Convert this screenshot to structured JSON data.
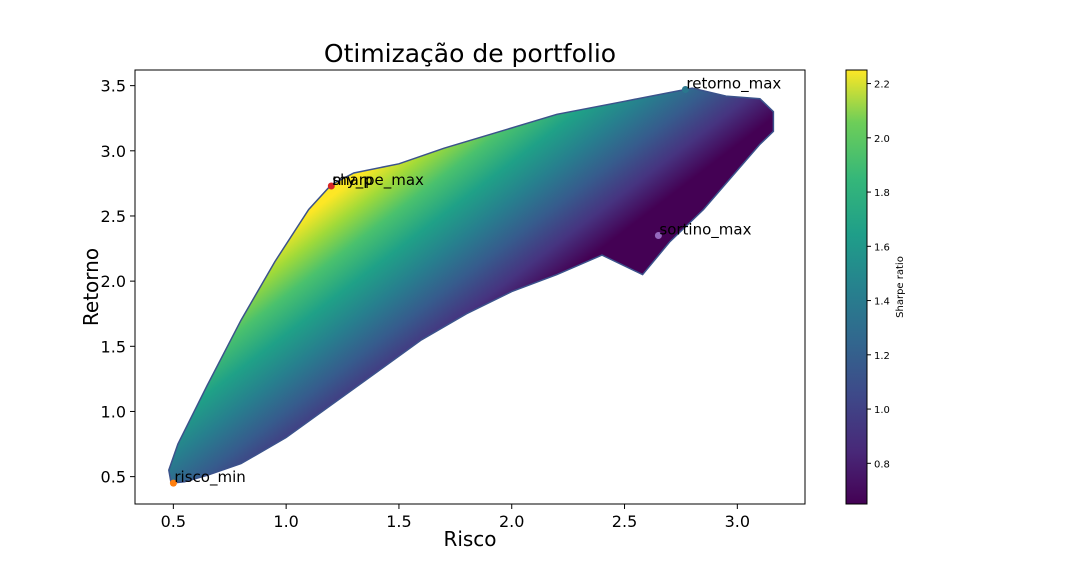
{
  "chart_data": {
    "type": "scatter",
    "title": "Otimização de portfolio",
    "xlabel": "Risco",
    "ylabel": "Retorno",
    "xlim": [
      0.33,
      3.3
    ],
    "ylim": [
      0.29,
      3.62
    ],
    "xticks": [
      0.5,
      1.0,
      1.5,
      2.0,
      2.5,
      3.0
    ],
    "yticks": [
      0.5,
      1.0,
      1.5,
      2.0,
      2.5,
      3.0,
      3.5
    ],
    "xtick_labels": [
      "0.5",
      "1.0",
      "1.5",
      "2.0",
      "2.5",
      "3.0"
    ],
    "ytick_labels": [
      "0.5",
      "1.0",
      "1.5",
      "2.0",
      "2.5",
      "3.0",
      "3.5"
    ],
    "grid": false,
    "colormap": "viridis",
    "colorbar": {
      "label": "Sharpe ratio",
      "range": [
        0.65,
        2.25
      ],
      "ticks": [
        0.8,
        1.0,
        1.2,
        1.4,
        1.6,
        1.8,
        2.0,
        2.2
      ],
      "tick_labels": [
        "0.8",
        "1.0",
        "1.2",
        "1.4",
        "1.6",
        "1.8",
        "2.0",
        "2.2"
      ]
    },
    "cloud_outline": [
      [
        0.49,
        0.45
      ],
      [
        0.55,
        0.46
      ],
      [
        0.65,
        0.51
      ],
      [
        0.8,
        0.6
      ],
      [
        1.0,
        0.8
      ],
      [
        1.2,
        1.05
      ],
      [
        1.4,
        1.3
      ],
      [
        1.6,
        1.55
      ],
      [
        1.8,
        1.75
      ],
      [
        2.0,
        1.92
      ],
      [
        2.2,
        2.05
      ],
      [
        2.4,
        2.2
      ],
      [
        2.58,
        2.05
      ],
      [
        2.7,
        2.3
      ],
      [
        2.85,
        2.55
      ],
      [
        3.0,
        2.85
      ],
      [
        3.1,
        3.05
      ],
      [
        3.16,
        3.15
      ],
      [
        3.16,
        3.3
      ],
      [
        3.1,
        3.4
      ],
      [
        2.95,
        3.42
      ],
      [
        2.8,
        3.48
      ],
      [
        2.5,
        3.38
      ],
      [
        2.2,
        3.28
      ],
      [
        1.95,
        3.15
      ],
      [
        1.7,
        3.02
      ],
      [
        1.5,
        2.9
      ],
      [
        1.3,
        2.83
      ],
      [
        1.2,
        2.74
      ],
      [
        1.1,
        2.55
      ],
      [
        0.95,
        2.15
      ],
      [
        0.8,
        1.7
      ],
      [
        0.65,
        1.2
      ],
      [
        0.52,
        0.75
      ],
      [
        0.48,
        0.55
      ]
    ],
    "highlighted_points": [
      {
        "label": "retorno_max",
        "x": 2.77,
        "y": 3.47,
        "color": "#2a788e"
      },
      {
        "label": "sharpe_max",
        "x": 1.2,
        "y": 2.73,
        "color": "#d62728"
      },
      {
        "label": "sortino_max",
        "x": 2.65,
        "y": 2.35,
        "color": "#9467bd"
      },
      {
        "label": "risco_min",
        "x": 0.5,
        "y": 0.45,
        "color": "#ff7f0e"
      }
    ],
    "overlapping_label_fragment": "my_p"
  }
}
